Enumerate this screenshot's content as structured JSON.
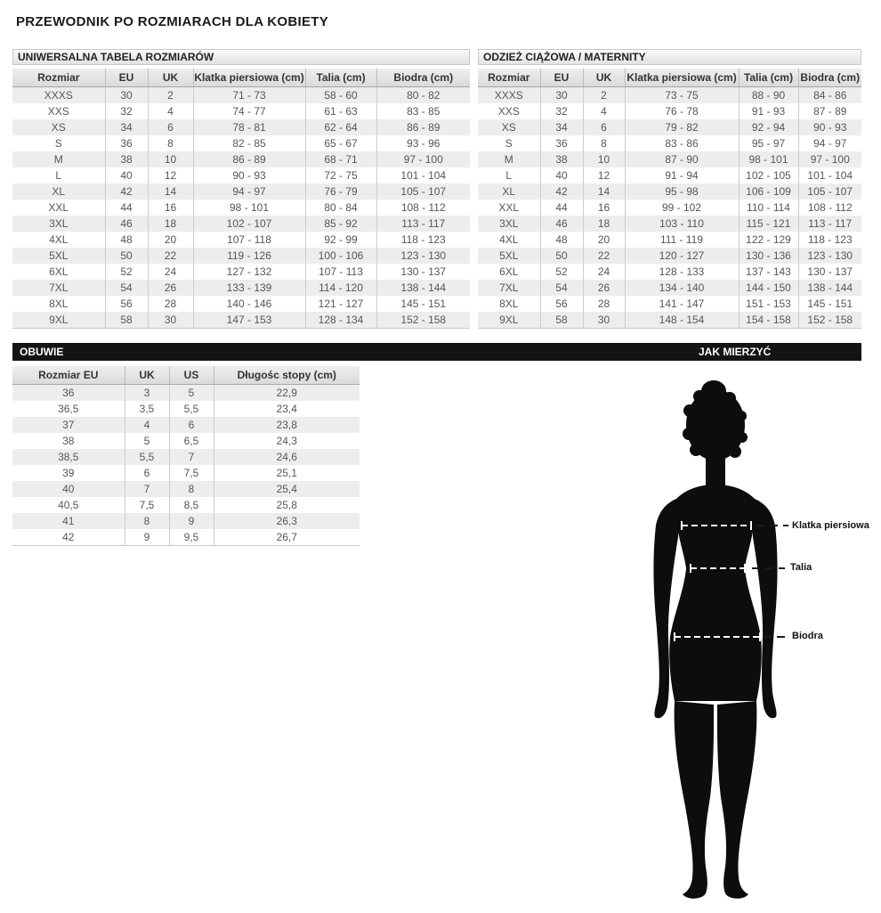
{
  "page_title": "PRZEWODNIK PO ROZMIARACH DLA KOBIETY",
  "universal_table": {
    "section_title": "UNIWERSALNA TABELA ROZMIARÓW",
    "columns": [
      "Rozmiar",
      "EU",
      "UK",
      "Klatka piersiowa (cm)",
      "Talia (cm)",
      "Biodra (cm)"
    ],
    "rows": [
      [
        "XXXS",
        "30",
        "2",
        "71 - 73",
        "58 - 60",
        "80 - 82"
      ],
      [
        "XXS",
        "32",
        "4",
        "74 - 77",
        "61 - 63",
        "83 - 85"
      ],
      [
        "XS",
        "34",
        "6",
        "78 - 81",
        "62 - 64",
        "86 - 89"
      ],
      [
        "S",
        "36",
        "8",
        "82 - 85",
        "65 - 67",
        "93 - 96"
      ],
      [
        "M",
        "38",
        "10",
        "86 - 89",
        "68 - 71",
        "97 - 100"
      ],
      [
        "L",
        "40",
        "12",
        "90 - 93",
        "72 - 75",
        "101 - 104"
      ],
      [
        "XL",
        "42",
        "14",
        "94 - 97",
        "76 - 79",
        "105 - 107"
      ],
      [
        "XXL",
        "44",
        "16",
        "98 - 101",
        "80 - 84",
        "108 - 112"
      ],
      [
        "3XL",
        "46",
        "18",
        "102 - 107",
        "85 - 92",
        "113 - 117"
      ],
      [
        "4XL",
        "48",
        "20",
        "107 - 118",
        "92 - 99",
        "118 - 123"
      ],
      [
        "5XL",
        "50",
        "22",
        "119 - 126",
        "100 - 106",
        "123 - 130"
      ],
      [
        "6XL",
        "52",
        "24",
        "127 - 132",
        "107 - 113",
        "130 - 137"
      ],
      [
        "7XL",
        "54",
        "26",
        "133 - 139",
        "114 - 120",
        "138 - 144"
      ],
      [
        "8XL",
        "56",
        "28",
        "140 - 146",
        "121 - 127",
        "145 - 151"
      ],
      [
        "9XL",
        "58",
        "30",
        "147 - 153",
        "128 - 134",
        "152 - 158"
      ]
    ]
  },
  "maternity_table": {
    "section_title": "ODZIEŻ CIĄŻOWA / MATERNITY",
    "columns": [
      "Rozmiar",
      "EU",
      "UK",
      "Klatka piersiowa (cm)",
      "Talia (cm)",
      "Biodra (cm)"
    ],
    "rows": [
      [
        "XXXS",
        "30",
        "2",
        "73 - 75",
        "88 - 90",
        "84 - 86"
      ],
      [
        "XXS",
        "32",
        "4",
        "76 - 78",
        "91 - 93",
        "87 - 89"
      ],
      [
        "XS",
        "34",
        "6",
        "79 - 82",
        "92 - 94",
        "90 - 93"
      ],
      [
        "S",
        "36",
        "8",
        "83 - 86",
        "95 - 97",
        "94 - 97"
      ],
      [
        "M",
        "38",
        "10",
        "87 - 90",
        "98 - 101",
        "97 - 100"
      ],
      [
        "L",
        "40",
        "12",
        "91 - 94",
        "102 - 105",
        "101 - 104"
      ],
      [
        "XL",
        "42",
        "14",
        "95 - 98",
        "106 - 109",
        "105 - 107"
      ],
      [
        "XXL",
        "44",
        "16",
        "99 - 102",
        "110 - 114",
        "108 - 112"
      ],
      [
        "3XL",
        "46",
        "18",
        "103 - 110",
        "115 - 121",
        "113 - 117"
      ],
      [
        "4XL",
        "48",
        "20",
        "111 - 119",
        "122 - 129",
        "118 - 123"
      ],
      [
        "5XL",
        "50",
        "22",
        "120 - 127",
        "130 - 136",
        "123 - 130"
      ],
      [
        "6XL",
        "52",
        "24",
        "128 - 133",
        "137 - 143",
        "130 - 137"
      ],
      [
        "7XL",
        "54",
        "26",
        "134 - 140",
        "144 - 150",
        "138 - 144"
      ],
      [
        "8XL",
        "56",
        "28",
        "141 - 147",
        "151 - 153",
        "145 - 151"
      ],
      [
        "9XL",
        "58",
        "30",
        "148 - 154",
        "154 - 158",
        "152 - 158"
      ]
    ]
  },
  "shoes_bar": {
    "left_label": "OBUWIE",
    "right_label": "JAK MIERZYĆ"
  },
  "shoes_table": {
    "columns": [
      "Rozmiar EU",
      "UK",
      "US",
      "Długośc stopy (cm)"
    ],
    "rows": [
      [
        "36",
        "3",
        "5",
        "22,9"
      ],
      [
        "36,5",
        "3,5",
        "5,5",
        "23,4"
      ],
      [
        "37",
        "4",
        "6",
        "23,8"
      ],
      [
        "38",
        "5",
        "6,5",
        "24,3"
      ],
      [
        "38,5",
        "5,5",
        "7",
        "24,6"
      ],
      [
        "39",
        "6",
        "7,5",
        "25,1"
      ],
      [
        "40",
        "7",
        "8",
        "25,4"
      ],
      [
        "40,5",
        "7,5",
        "8,5",
        "25,8"
      ],
      [
        "41",
        "8",
        "9",
        "26,3"
      ],
      [
        "42",
        "9",
        "9,5",
        "26,7"
      ]
    ]
  },
  "measure_figure": {
    "chest_label": "Klatka piersiowa",
    "waist_label": "Talia",
    "hips_label": "Biodra"
  },
  "colors": {
    "header_bar_bg": "#141414",
    "header_bar_text": "#ffffff",
    "section_bar_bg": "#e2e2e2",
    "table_header_bg": "#dbdbdb",
    "row_stripe": "#ededed",
    "cell_text": "#565656",
    "silhouette": "#0d0d0d"
  }
}
